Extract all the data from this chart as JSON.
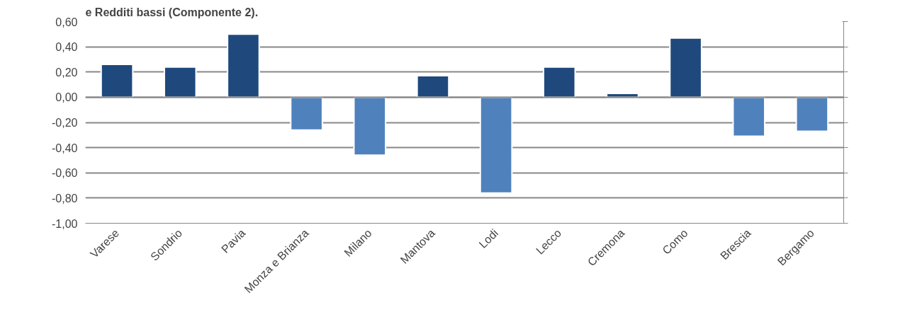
{
  "chart_data": {
    "type": "bar",
    "title": "e Redditi bassi (Componente 2).",
    "categories": [
      "Varese",
      "Sondrio",
      "Pavia",
      "Monza e Brianza",
      "Milano",
      "Mantova",
      "Lodi",
      "Lecco",
      "Cremona",
      "Como",
      "Brescia",
      "Bergamo"
    ],
    "values": [
      0.26,
      0.24,
      0.5,
      -0.26,
      -0.46,
      0.17,
      -0.76,
      0.24,
      0.03,
      0.47,
      -0.31,
      -0.27
    ],
    "colors": [
      "#1f497d",
      "#1f497d",
      "#1f497d",
      "#4f81bd",
      "#4f81bd",
      "#1f497d",
      "#4f81bd",
      "#1f497d",
      "#1f497d",
      "#1f497d",
      "#4f81bd",
      "#4f81bd"
    ],
    "ylim": [
      -1.0,
      0.6
    ],
    "yticks": [
      {
        "value": -1.0,
        "label": "-1,00"
      },
      {
        "value": -0.8,
        "label": "-0,80"
      },
      {
        "value": -0.6,
        "label": "-0,60"
      },
      {
        "value": -0.4,
        "label": "-0,40"
      },
      {
        "value": -0.2,
        "label": "-0,20"
      },
      {
        "value": 0,
        "label": "0,00"
      },
      {
        "value": 0.2,
        "label": "0,20"
      },
      {
        "value": 0.4,
        "label": "0,40"
      },
      {
        "value": 0.6,
        "label": "0,60"
      }
    ],
    "grid": "y"
  }
}
